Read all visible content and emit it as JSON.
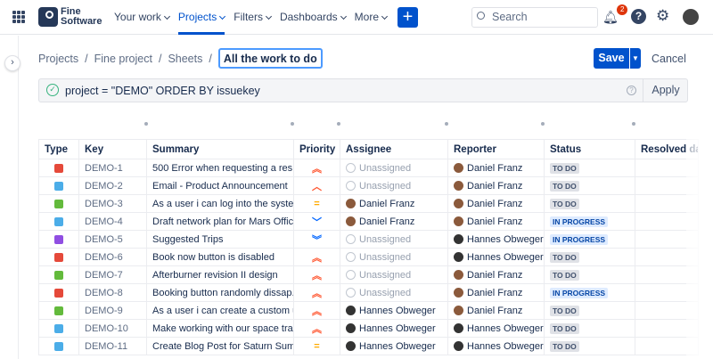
{
  "nav": {
    "logo": [
      "Fine",
      "Software"
    ],
    "menu": [
      "Your work",
      "Projects",
      "Filters",
      "Dashboards",
      "More"
    ],
    "active": "Projects",
    "search_placeholder": "Search",
    "notifications": "2",
    "create": "+"
  },
  "breadcrumb": [
    "Projects",
    "Fine project",
    "Sheets"
  ],
  "sheet_title": "All the work to do",
  "actions": {
    "save": "Save",
    "cancel": "Cancel"
  },
  "query": {
    "text": "project = \"DEMO\" ORDER BY issuekey",
    "apply": "Apply",
    "help": "?"
  },
  "table": {
    "columns": [
      "Type",
      "Key",
      "Summary",
      "Priority",
      "Assignee",
      "Reporter",
      "Status",
      "Resolved da"
    ],
    "rows": [
      {
        "type": "bug",
        "key": "DEMO-1",
        "summary": "500 Error when requesting a res...",
        "priority": "highest",
        "assignee": "Unassigned",
        "reporter": "Daniel Franz",
        "status": "TO DO"
      },
      {
        "type": "task",
        "key": "DEMO-2",
        "summary": "Email - Product Announcement",
        "priority": "high",
        "assignee": "Unassigned",
        "reporter": "Daniel Franz",
        "status": "TO DO"
      },
      {
        "type": "story",
        "key": "DEMO-3",
        "summary": "As a user i can log into the syste...",
        "priority": "medium",
        "assignee": "Daniel Franz",
        "reporter": "Daniel Franz",
        "status": "TO DO"
      },
      {
        "type": "task",
        "key": "DEMO-4",
        "summary": "Draft network plan for Mars Office",
        "priority": "low",
        "assignee": "Daniel Franz",
        "reporter": "Daniel Franz",
        "status": "IN PROGRESS"
      },
      {
        "type": "epic",
        "key": "DEMO-5",
        "summary": "Suggested Trips",
        "priority": "lowest",
        "assignee": "Unassigned",
        "reporter": "Hannes Obweger",
        "status": "IN PROGRESS"
      },
      {
        "type": "bug",
        "key": "DEMO-6",
        "summary": "Book now button is disabled",
        "priority": "highest",
        "assignee": "Unassigned",
        "reporter": "Hannes Obweger",
        "status": "TO DO"
      },
      {
        "type": "story",
        "key": "DEMO-7",
        "summary": "Afterburner revision II design",
        "priority": "highest",
        "assignee": "Unassigned",
        "reporter": "Daniel Franz",
        "status": "TO DO"
      },
      {
        "type": "bug",
        "key": "DEMO-8",
        "summary": "Booking button randomly dissap...",
        "priority": "highest",
        "assignee": "Unassigned",
        "reporter": "Daniel Franz",
        "status": "IN PROGRESS"
      },
      {
        "type": "story",
        "key": "DEMO-9",
        "summary": "As a user i can create a custom u...",
        "priority": "highest",
        "assignee": "Hannes Obweger",
        "reporter": "Daniel Franz",
        "status": "TO DO"
      },
      {
        "type": "task",
        "key": "DEMO-10",
        "summary": "Make working with our space tra...",
        "priority": "highest",
        "assignee": "Hannes Obweger",
        "reporter": "Hannes Obweger",
        "status": "TO DO"
      },
      {
        "type": "task",
        "key": "DEMO-11",
        "summary": "Create Blog Post for Saturn Sum...",
        "priority": "medium",
        "assignee": "Hannes Obweger",
        "reporter": "Hannes Obweger",
        "status": "TO DO"
      }
    ]
  },
  "colors": {
    "accent": "#0052cc",
    "bug": "#e5493a",
    "task": "#4bade8",
    "story": "#63ba3c",
    "epic": "#904ee2",
    "priority_high": "#ff5630",
    "priority_medium": "#ffab00",
    "priority_low": "#0065ff"
  }
}
